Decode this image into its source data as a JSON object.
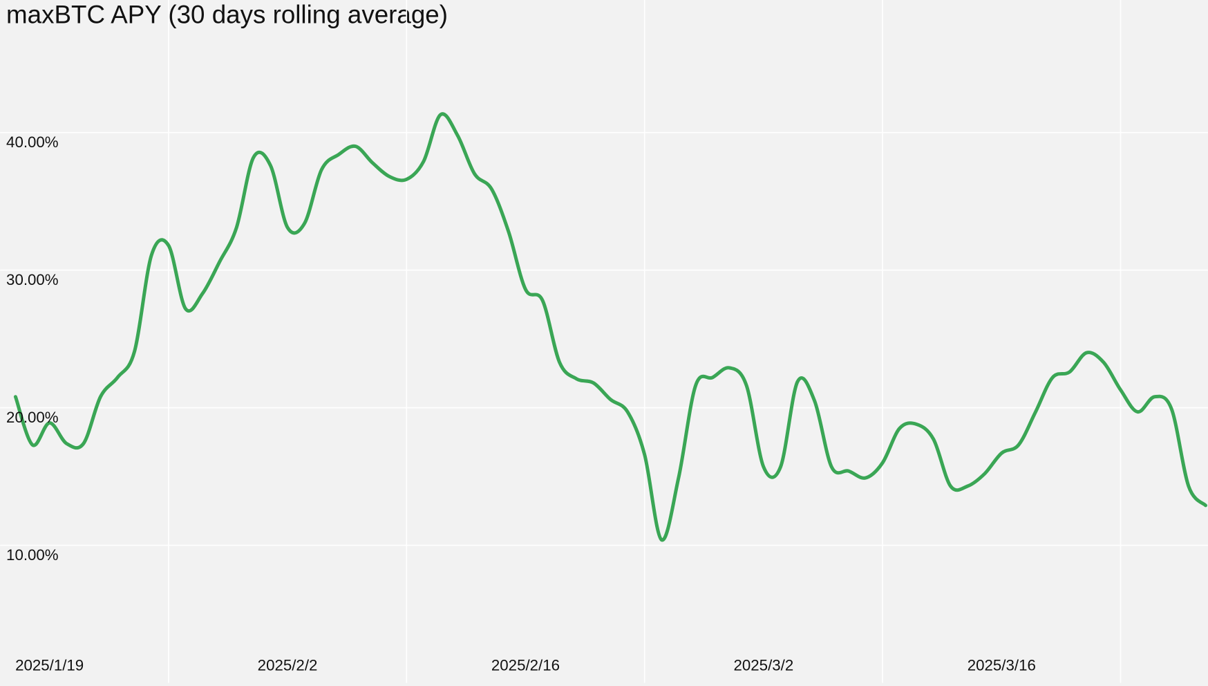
{
  "chart_data": {
    "type": "line",
    "title": "maxBTC APY (30 days rolling average)",
    "x": [
      "2025/1/17",
      "2025/1/18",
      "2025/1/19",
      "2025/1/20",
      "2025/1/21",
      "2025/1/22",
      "2025/1/23",
      "2025/1/24",
      "2025/1/25",
      "2025/1/26",
      "2025/1/27",
      "2025/1/28",
      "2025/1/29",
      "2025/1/30",
      "2025/1/31",
      "2025/2/1",
      "2025/2/2",
      "2025/2/3",
      "2025/2/4",
      "2025/2/5",
      "2025/2/6",
      "2025/2/7",
      "2025/2/8",
      "2025/2/9",
      "2025/2/10",
      "2025/2/11",
      "2025/2/12",
      "2025/2/13",
      "2025/2/14",
      "2025/2/15",
      "2025/2/16",
      "2025/2/17",
      "2025/2/18",
      "2025/2/19",
      "2025/2/20",
      "2025/2/21",
      "2025/2/22",
      "2025/2/23",
      "2025/2/24",
      "2025/2/25",
      "2025/2/26",
      "2025/2/27",
      "2025/2/28",
      "2025/3/1",
      "2025/3/2",
      "2025/3/3",
      "2025/3/4",
      "2025/3/5",
      "2025/3/6",
      "2025/3/7",
      "2025/3/8",
      "2025/3/9",
      "2025/3/10",
      "2025/3/11",
      "2025/3/12",
      "2025/3/13",
      "2025/3/14",
      "2025/3/15",
      "2025/3/16",
      "2025/3/17",
      "2025/3/18",
      "2025/3/19",
      "2025/3/20",
      "2025/3/21",
      "2025/3/22",
      "2025/3/23",
      "2025/3/24",
      "2025/3/25",
      "2025/3/26",
      "2025/3/27",
      "2025/3/28"
    ],
    "series": [
      {
        "name": "maxBTC APY",
        "color": "#3aa655",
        "values": [
          20.8,
          17.3,
          18.9,
          17.4,
          17.4,
          20.8,
          22.2,
          24.1,
          31.1,
          31.8,
          27.2,
          28.3,
          30.6,
          33.1,
          38.2,
          37.6,
          33.1,
          33.4,
          37.3,
          38.4,
          39.0,
          37.8,
          36.8,
          36.6,
          37.9,
          41.3,
          39.8,
          37.0,
          35.9,
          32.8,
          28.6,
          27.8,
          23.3,
          22.1,
          21.8,
          20.6,
          19.7,
          16.6,
          10.4,
          14.9,
          21.6,
          22.2,
          22.9,
          21.6,
          15.7,
          15.7,
          21.9,
          20.5,
          15.7,
          15.4,
          14.9,
          16.0,
          18.5,
          18.8,
          17.7,
          14.3,
          14.3,
          15.2,
          16.7,
          17.3,
          19.7,
          22.2,
          22.6,
          24.0,
          23.3,
          21.3,
          19.7,
          20.8,
          19.9,
          14.3,
          12.9
        ]
      }
    ],
    "xlim": [
      "2025/1/17",
      "2025/3/28"
    ],
    "xticks": [
      "2025/1/19",
      "2025/2/2",
      "2025/2/16",
      "2025/3/2",
      "2025/3/16"
    ],
    "xgrid": [
      "2025/1/26",
      "2025/2/9",
      "2025/2/23",
      "2025/3/9",
      "2025/3/23"
    ],
    "ylim": [
      0,
      50
    ],
    "yticks": [
      {
        "value": 10,
        "label": "10.00%"
      },
      {
        "value": 20,
        "label": "20.00%"
      },
      {
        "value": 30,
        "label": "30.00%"
      },
      {
        "value": 40,
        "label": "40.00%"
      }
    ],
    "grid": true
  }
}
